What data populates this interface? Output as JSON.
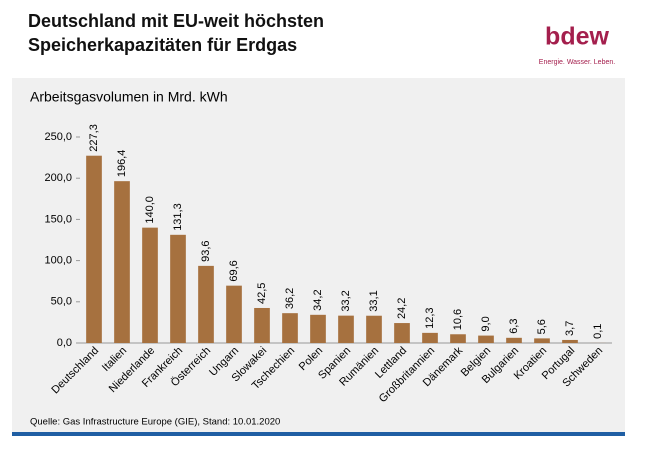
{
  "chart_data": {
    "type": "bar",
    "title": [
      "Deutschland mit EU-weit höchsten",
      "Speicherkapazitäten für Erdgas"
    ],
    "y_label": "Arbeitsgasvolumen in Mrd. kWh",
    "source": "Quelle: Gas Infrastructure Europe (GIE), Stand: 10.01.2020",
    "categories": [
      "Deutschland",
      "Italien",
      "Niederlande",
      "Frankreich",
      "Österreich",
      "Ungarn",
      "Slowakei",
      "Tschechien",
      "Polen",
      "Spanien",
      "Rumänien",
      "Lettland",
      "Großbritannien",
      "Dänemark",
      "Belgien",
      "Bulgarien",
      "Kroatien",
      "Portugal",
      "Schweden"
    ],
    "values": [
      227.3,
      196.4,
      140.0,
      131.3,
      93.6,
      69.6,
      42.5,
      36.2,
      34.2,
      33.2,
      33.1,
      24.2,
      12.3,
      10.6,
      9.0,
      6.3,
      5.6,
      3.7,
      0.1
    ],
    "value_labels": [
      "227,3",
      "196,4",
      "140,0",
      "131,3",
      "93,6",
      "69,6",
      "42,5",
      "36,2",
      "34,2",
      "33,2",
      "33,1",
      "24,2",
      "12,3",
      "10,6",
      "9,0",
      "6,3",
      "5,6",
      "3,7",
      "0,1"
    ],
    "color": "#a6713f",
    "ylim": [
      0,
      250
    ],
    "yticks": [
      {
        "value": 0,
        "label": "0,0"
      },
      {
        "value": 50,
        "label": "50,0"
      },
      {
        "value": 100,
        "label": "100,0"
      },
      {
        "value": 150,
        "label": "150,0"
      },
      {
        "value": 200,
        "label": "200,0"
      },
      {
        "value": 250,
        "label": "250,0"
      }
    ],
    "grid": false
  },
  "logo": {
    "name": "bdew",
    "tagline": "Energie. Wasser. Leben."
  }
}
